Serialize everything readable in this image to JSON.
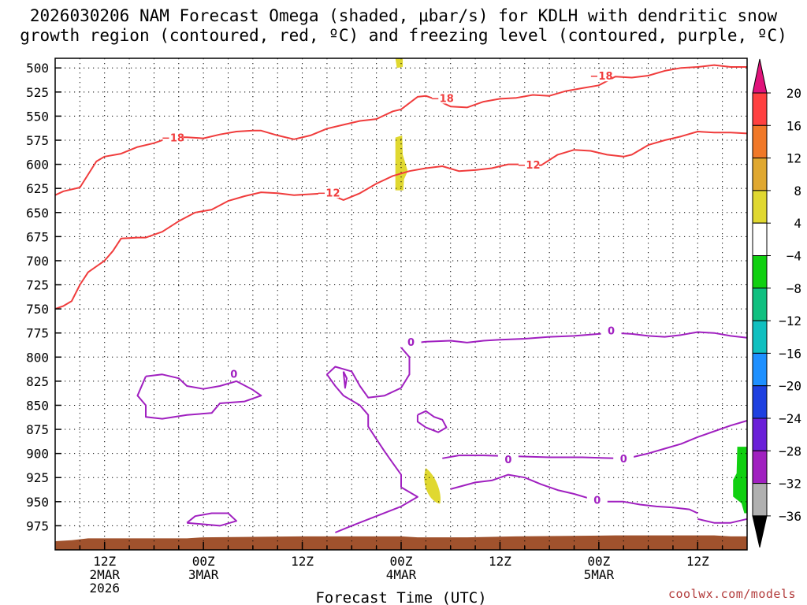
{
  "title_line1": "2026030206 NAM Forecast Omega (shaded, μbar/s) for KDLH with dendritic snow",
  "title_line2": "growth region (contoured, red, ºC) and freezing level (contoured, purple, ºC)",
  "credit": "coolwx.com/models",
  "chart_data": {
    "type": "time-height section",
    "title": "2026030206 NAM Forecast Omega (shaded, μbar/s) for KDLH with dendritic snow growth region (contoured, red, ºC) and freezing level (contoured, purple, ºC)",
    "xlabel": "Forecast Time (UTC)",
    "ylabel": "",
    "x_range_hours": [
      6,
      90
    ],
    "x_ticks": [
      {
        "hour": 12,
        "labels": [
          "12Z",
          "2MAR",
          "2026"
        ]
      },
      {
        "hour": 24,
        "labels": [
          "00Z",
          "3MAR"
        ]
      },
      {
        "hour": 36,
        "labels": [
          "12Z"
        ]
      },
      {
        "hour": 48,
        "labels": [
          "00Z",
          "4MAR"
        ]
      },
      {
        "hour": 60,
        "labels": [
          "12Z"
        ]
      },
      {
        "hour": 72,
        "labels": [
          "00Z",
          "5MAR"
        ]
      },
      {
        "hour": 84,
        "labels": [
          "12Z"
        ]
      }
    ],
    "y_scale": "linear pressure (hPa), inverted",
    "y_range": [
      1000,
      490
    ],
    "y_ticks": [
      500,
      525,
      550,
      575,
      600,
      625,
      650,
      675,
      700,
      725,
      750,
      775,
      800,
      825,
      850,
      875,
      900,
      925,
      950,
      975
    ],
    "grid": true,
    "colorbar": {
      "labels": [
        "20",
        "16",
        "12",
        "8",
        "4",
        "−4",
        "−8",
        "−12",
        "−16",
        "−20",
        "−24",
        "−28",
        "−32",
        "−36"
      ],
      "bands": [
        {
          "from": 16,
          "to": 20,
          "color": "#ff4040"
        },
        {
          "from": 12,
          "to": 16,
          "color": "#f07828"
        },
        {
          "from": 8,
          "to": 12,
          "color": "#e0a830"
        },
        {
          "from": 4,
          "to": 8,
          "color": "#e0d830"
        },
        {
          "from": -4,
          "to": 4,
          "color": "#ffffff"
        },
        {
          "from": -8,
          "to": -4,
          "color": "#10d010"
        },
        {
          "from": -12,
          "to": -8,
          "color": "#10c080"
        },
        {
          "from": -16,
          "to": -12,
          "color": "#10c0c0"
        },
        {
          "from": -20,
          "to": -16,
          "color": "#1e90ff"
        },
        {
          "from": -24,
          "to": -20,
          "color": "#1e40e0"
        },
        {
          "from": -28,
          "to": -24,
          "color": "#6a1fd8"
        },
        {
          "from": -32,
          "to": -28,
          "color": "#a020c0"
        },
        {
          "from": -36,
          "to": -32,
          "color": "#b0b0b0"
        }
      ],
      "top_arrow_color": "#e0137a",
      "bottom_arrow_color": "#000000"
    },
    "contours": {
      "red_minus18": {
        "label": "−18",
        "color": "#f03c3c",
        "label_points": [
          [
            20.3,
            573
          ],
          [
            72.3,
            509
          ],
          [
            53.0,
            532
          ]
        ],
        "points": [
          [
            6,
            632
          ],
          [
            7,
            628
          ],
          [
            9,
            624
          ],
          [
            11,
            597
          ],
          [
            12,
            592
          ],
          [
            14,
            589
          ],
          [
            16,
            582
          ],
          [
            18,
            578
          ],
          [
            20,
            572
          ],
          [
            22,
            572
          ],
          [
            24,
            573
          ],
          [
            26,
            569
          ],
          [
            28,
            566
          ],
          [
            30,
            565
          ],
          [
            31,
            565
          ],
          [
            33,
            570
          ],
          [
            35,
            574
          ],
          [
            37,
            570
          ],
          [
            39,
            563
          ],
          [
            41,
            559
          ],
          [
            43,
            555
          ],
          [
            45,
            553
          ],
          [
            47,
            545
          ],
          [
            48,
            543
          ],
          [
            50,
            530
          ],
          [
            51,
            529
          ],
          [
            52,
            532
          ],
          [
            54,
            540
          ],
          [
            56,
            541
          ],
          [
            58,
            535
          ],
          [
            60,
            532
          ],
          [
            62,
            531
          ],
          [
            64,
            528
          ],
          [
            66,
            529
          ],
          [
            68,
            524
          ],
          [
            70,
            521
          ],
          [
            72,
            518
          ],
          [
            74,
            509
          ],
          [
            76,
            510
          ],
          [
            78,
            508
          ],
          [
            80,
            503
          ],
          [
            82,
            500
          ],
          [
            84,
            499
          ],
          [
            86,
            497
          ],
          [
            88,
            499
          ],
          [
            90,
            499
          ]
        ]
      },
      "red_minus12": {
        "label": "−12",
        "color": "#f03c3c",
        "label_points": [
          [
            39.2,
            630
          ],
          [
            63.5,
            601
          ]
        ],
        "points": [
          [
            6,
            750
          ],
          [
            7,
            747
          ],
          [
            8,
            742
          ],
          [
            9,
            725
          ],
          [
            10,
            712
          ],
          [
            12,
            700
          ],
          [
            13,
            690
          ],
          [
            14,
            677
          ],
          [
            16,
            676
          ],
          [
            17,
            676
          ],
          [
            19,
            670
          ],
          [
            21,
            659
          ],
          [
            23,
            650
          ],
          [
            25,
            647
          ],
          [
            27,
            638
          ],
          [
            29,
            633
          ],
          [
            31,
            629
          ],
          [
            33,
            630
          ],
          [
            35,
            632
          ],
          [
            37,
            631
          ],
          [
            39,
            630
          ],
          [
            41,
            637
          ],
          [
            43,
            630
          ],
          [
            45,
            620
          ],
          [
            47,
            612
          ],
          [
            49,
            607
          ],
          [
            51,
            604
          ],
          [
            53,
            602
          ],
          [
            55,
            607
          ],
          [
            57,
            606
          ],
          [
            59,
            604
          ],
          [
            61,
            600
          ],
          [
            63,
            600
          ],
          [
            65,
            601
          ],
          [
            67,
            590
          ],
          [
            69,
            585
          ],
          [
            71,
            586
          ],
          [
            73,
            590
          ],
          [
            75,
            592
          ],
          [
            76,
            590
          ],
          [
            78,
            580
          ],
          [
            80,
            575
          ],
          [
            82,
            571
          ],
          [
            84,
            566
          ],
          [
            86,
            567
          ],
          [
            88,
            567
          ],
          [
            90,
            568
          ]
        ]
      },
      "purple_zero": {
        "label": "0",
        "color": "#a020c0",
        "label_points": [
          [
            49.2,
            785
          ],
          [
            73.5,
            773
          ],
          [
            27.7,
            818
          ],
          [
            61.0,
            907
          ],
          [
            75.0,
            906
          ],
          [
            71.8,
            949
          ]
        ]
      }
    },
    "omega_shading": [
      {
        "label": "upper band",
        "hour_range": [
          47.3,
          48.2
        ],
        "p_range": [
          490,
          500
        ],
        "color": "#e0d830"
      },
      {
        "label": "mid band",
        "hour_range": [
          47.3,
          48.8
        ],
        "p_range": [
          570,
          627
        ],
        "color": "#e0d830"
      },
      {
        "label": "low patch",
        "hour_range": [
          50.3,
          53.0
        ],
        "p_range": [
          915,
          952
        ],
        "color": "#e0d830"
      },
      {
        "label": "low-level green",
        "hour_range": [
          88.3,
          90.0
        ],
        "p_range": [
          893,
          962
        ],
        "color": "#10d010"
      }
    ]
  }
}
